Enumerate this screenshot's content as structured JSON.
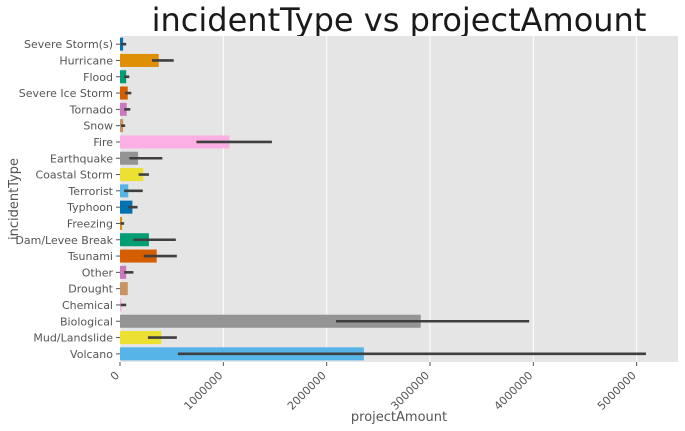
{
  "chart_data": {
    "type": "bar",
    "orientation": "horizontal",
    "title": "incidentType vs projectAmount",
    "xlabel": "projectAmount",
    "ylabel": "incidentType",
    "xlim": [
      0,
      5400000
    ],
    "xticks": [
      0,
      1000000,
      2000000,
      3000000,
      4000000,
      5000000
    ],
    "xtick_labels": [
      "0",
      "1000000",
      "2000000",
      "3000000",
      "4000000",
      "5000000"
    ],
    "grid": true,
    "background": "#e5e5e5",
    "grid_color": "#ffffff",
    "error_bar_color": "#3f3f3f",
    "categories": [
      "Severe Storm(s)",
      "Hurricane",
      "Flood",
      "Severe Ice Storm",
      "Tornado",
      "Snow",
      "Fire",
      "Earthquake",
      "Coastal Storm",
      "Terrorist",
      "Typhoon",
      "Freezing",
      "Dam/Levee Break",
      "Tsunami",
      "Other",
      "Drought",
      "Chemical",
      "Biological",
      "Mud/Landslide",
      "Volcano"
    ],
    "values": [
      30000,
      375000,
      60000,
      75000,
      65000,
      30000,
      1060000,
      175000,
      225000,
      80000,
      120000,
      20000,
      280000,
      355000,
      60000,
      75000,
      15000,
      2910000,
      400000,
      2360000
    ],
    "error_low": [
      10000,
      310000,
      40000,
      50000,
      40000,
      10000,
      740000,
      90000,
      180000,
      40000,
      80000,
      5000,
      130000,
      230000,
      40000,
      75000,
      5000,
      2090000,
      270000,
      560000
    ],
    "error_high": [
      60000,
      520000,
      90000,
      110000,
      100000,
      50000,
      1470000,
      410000,
      280000,
      220000,
      170000,
      40000,
      540000,
      550000,
      130000,
      75000,
      60000,
      3960000,
      550000,
      5090000
    ],
    "colors": [
      "#0173b2",
      "#de8f05",
      "#029e73",
      "#d55e00",
      "#cc78bc",
      "#ca9161",
      "#fbafe4",
      "#949494",
      "#ece133",
      "#56b4e9",
      "#0173b2",
      "#de8f05",
      "#029e73",
      "#d55e00",
      "#cc78bc",
      "#ca9161",
      "#fbafe4",
      "#949494",
      "#ece133",
      "#56b4e9"
    ]
  }
}
